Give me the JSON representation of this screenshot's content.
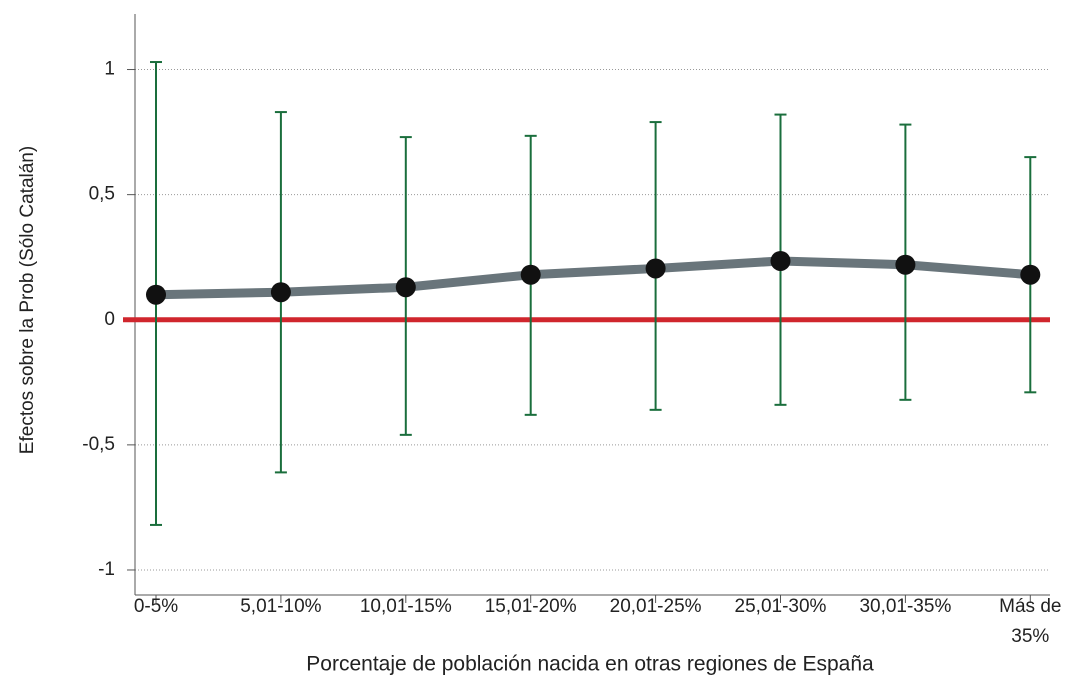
{
  "chart_data": {
    "type": "line",
    "y_label": "Efectos sobre la Prob (Sólo Catalán)",
    "x_label": "Porcentaje de población nacida en otras regiones de España",
    "categories": [
      "0-5%",
      "5,01-10%",
      "10,01-15%",
      "15,01-20%",
      "20,01-25%",
      "25,01-30%",
      "30,01-35%",
      "Más de\n35%"
    ],
    "series": [
      {
        "color": "#69757b",
        "marker_color": "#111111",
        "error_color": "#1a6e3c",
        "values": [
          0.1,
          0.11,
          0.13,
          0.18,
          0.205,
          0.235,
          0.22,
          0.18
        ],
        "lower": [
          -0.82,
          -0.61,
          -0.46,
          -0.38,
          -0.36,
          -0.34,
          -0.32,
          -0.29
        ],
        "upper": [
          1.03,
          0.83,
          0.73,
          0.735,
          0.79,
          0.82,
          0.78,
          0.65
        ]
      }
    ],
    "reference_line": {
      "value": 0,
      "color": "#d0262d"
    },
    "ylim": [
      -1.1,
      1.15
    ],
    "yticks": [
      {
        "value": 1,
        "label": "1"
      },
      {
        "value": 0.5,
        "label": "0,5"
      },
      {
        "value": 0,
        "label": "0"
      },
      {
        "value": -0.5,
        "label": "-0,5"
      },
      {
        "value": -1,
        "label": "-1"
      }
    ],
    "grid": true
  }
}
